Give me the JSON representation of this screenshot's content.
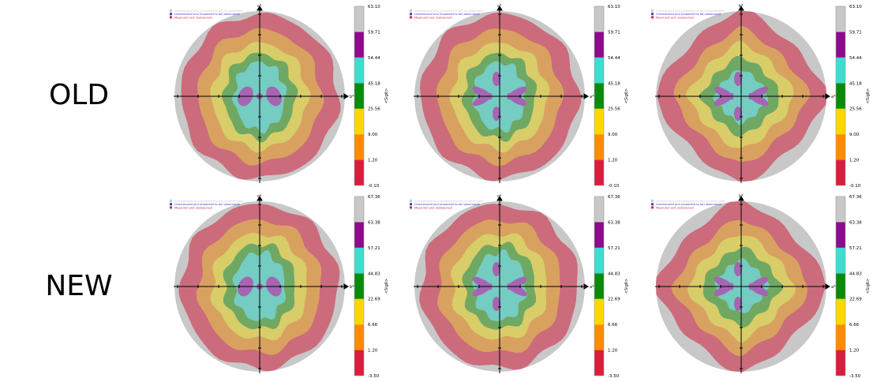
{
  "rows": {
    "old_label": "OLD",
    "new_label": "NEW"
  },
  "legend": [
    {
      "label": "Unmeasured and (expected to be) unobservable",
      "color": "#c9c9c9"
    },
    {
      "label": "Unmeasured and (expected to be) observable",
      "color": "#3c3cc8"
    },
    {
      "label": "Measured and unobserved",
      "color": "#d6224d"
    }
  ],
  "colorbar_axis_label": "<Sig6>",
  "colors": {
    "background": "#ffffff",
    "levels": [
      "#d81e3c",
      "#fb8c00",
      "#ffd700",
      "#0a8a0a",
      "#3fdcd0",
      "#8c0a8c",
      "#c8c8c8"
    ],
    "map_bands": [
      "#c8c8c8",
      "#cc6b7c",
      "#d9a15f",
      "#d8cd68",
      "#6fa863",
      "#74ccc2",
      "#a565b2"
    ]
  },
  "chart_data": [
    {
      "type": "heatmap",
      "row": "OLD",
      "axis_x_label": "b*",
      "axis_y_label": "c*",
      "colorbar_ticks": [
        "63.10",
        "59.71",
        "54.44",
        "45.18",
        "25.56",
        "9.00",
        "1.20",
        "-0.10"
      ],
      "shape": "ellipse",
      "blob": "cross"
    },
    {
      "type": "heatmap",
      "row": "OLD",
      "axis_x_label": "a*",
      "axis_y_label": "c*",
      "colorbar_ticks": [
        "63.10",
        "59.71",
        "54.44",
        "45.18",
        "25.56",
        "9.00",
        "1.20",
        "-0.10"
      ],
      "shape": "ellipse",
      "blob": "butterfly"
    },
    {
      "type": "heatmap",
      "row": "OLD",
      "axis_x_label": "a*",
      "axis_y_label": "b*",
      "colorbar_ticks": [
        "63.10",
        "59.71",
        "54.44",
        "45.18",
        "25.56",
        "9.00",
        "1.20",
        "-0.10"
      ],
      "shape": "diamond",
      "blob": "butterfly"
    },
    {
      "type": "heatmap",
      "row": "NEW",
      "axis_x_label": "b*",
      "axis_y_label": "c*",
      "colorbar_ticks": [
        "67.36",
        "63.38",
        "57.21",
        "44.83",
        "22.69",
        "6.66",
        "1.20",
        "-3.50"
      ],
      "shape": "ellipse",
      "blob": "cross"
    },
    {
      "type": "heatmap",
      "row": "NEW",
      "axis_x_label": "a*",
      "axis_y_label": "c*",
      "colorbar_ticks": [
        "67.36",
        "63.38",
        "57.21",
        "44.83",
        "22.69",
        "6.66",
        "1.20",
        "-3.50"
      ],
      "shape": "ellipse",
      "blob": "butterfly"
    },
    {
      "type": "heatmap",
      "row": "NEW",
      "axis_x_label": "a*",
      "axis_y_label": "b*",
      "colorbar_ticks": [
        "67.36",
        "63.38",
        "57.21",
        "44.83",
        "22.69",
        "6.66",
        "1.20",
        "-3.50"
      ],
      "shape": "diamond",
      "blob": "butterfly"
    }
  ]
}
